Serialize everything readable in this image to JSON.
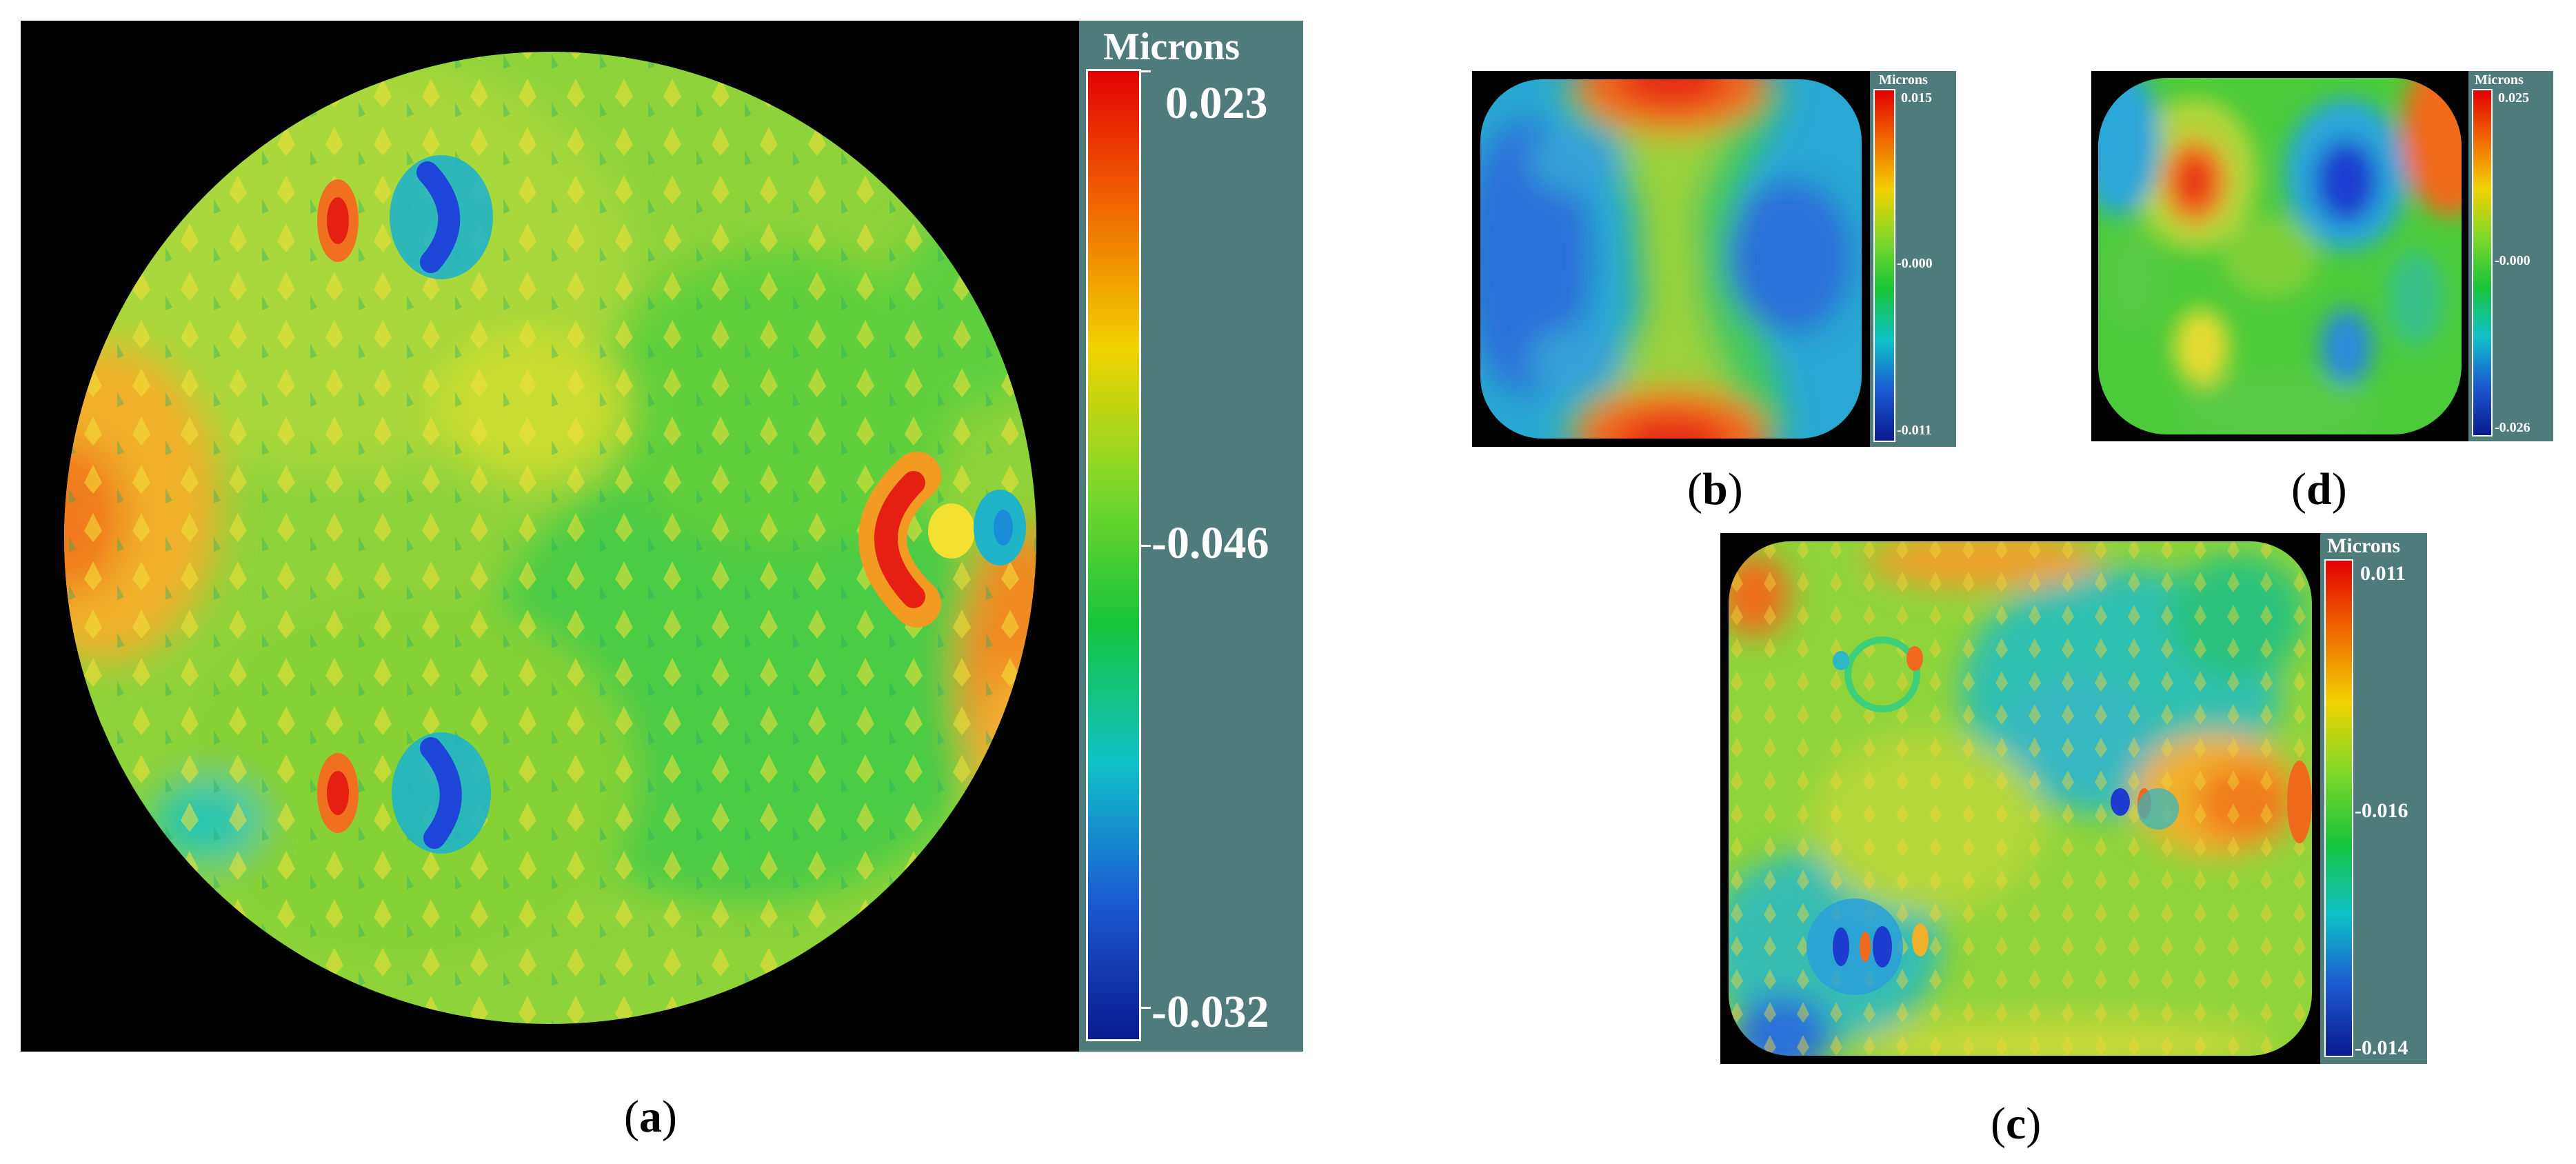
{
  "panels": {
    "a": {
      "caption_letter": "a",
      "colorbar": {
        "title": "Microns",
        "top": "0.023",
        "mid": "-0.046",
        "bottom": "-0.032"
      }
    },
    "b": {
      "caption_letter": "b",
      "colorbar": {
        "title": "Microns",
        "top": "0.015",
        "mid": "-0.000",
        "bottom": "-0.011"
      }
    },
    "c": {
      "caption_letter": "c",
      "colorbar": {
        "title": "Microns",
        "top": "0.011",
        "mid": "-0.016",
        "bottom": "-0.014"
      }
    },
    "d": {
      "caption_letter": "d",
      "colorbar": {
        "title": "Microns",
        "top": "0.025",
        "mid": "-0.000",
        "bottom": "-0.026"
      }
    }
  }
}
